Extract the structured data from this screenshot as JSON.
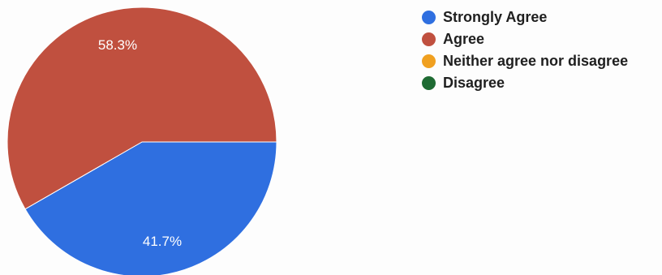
{
  "chart_data": {
    "type": "pie",
    "slices": [
      {
        "name": "Strongly Agree",
        "value": 41.7,
        "label": "41.7%",
        "color": "#2f6fe0"
      },
      {
        "name": "Agree",
        "value": 58.3,
        "label": "58.3%",
        "color": "#c0503f"
      },
      {
        "name": "Neither agree nor disagree",
        "value": 0,
        "label": "",
        "color": "#f0a020"
      },
      {
        "name": "Disagree",
        "value": 0,
        "label": "",
        "color": "#1f6b33"
      }
    ],
    "legend": {
      "position": "top-right",
      "items": [
        "Strongly Agree",
        "Agree",
        "Neither agree nor disagree",
        "Disagree"
      ]
    }
  }
}
